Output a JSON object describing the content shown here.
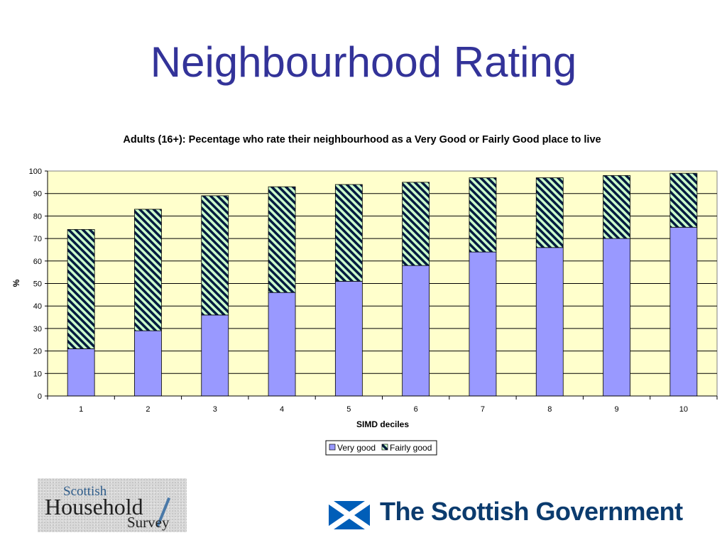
{
  "slide": {
    "title": "Neighbourhood Rating"
  },
  "chart_data": {
    "type": "bar",
    "stacked": true,
    "title": "Adults (16+): Pecentage who rate their neighbourhood as a Very Good or Fairly Good place to live",
    "xlabel": "SIMD deciles",
    "ylabel": "%",
    "ylim": [
      0,
      100
    ],
    "yticks": [
      "0",
      "10",
      "20",
      "30",
      "40",
      "50",
      "60",
      "70",
      "80",
      "90",
      "100"
    ],
    "categories": [
      "1",
      "2",
      "3",
      "4",
      "5",
      "6",
      "7",
      "8",
      "9",
      "10"
    ],
    "series": [
      {
        "name": "Very good",
        "values": [
          21,
          29,
          36,
          46,
          51,
          58,
          64,
          66,
          70,
          75
        ],
        "color": "#9999ff",
        "pattern": "solid"
      },
      {
        "name": "Fairly good",
        "values": [
          53,
          54,
          53,
          47,
          43,
          37,
          33,
          31,
          28,
          24
        ],
        "color": "#ccffcc",
        "pattern": "diagonal-hatch"
      }
    ],
    "background": "#ffffcc",
    "grid": true,
    "legend": "bottom-center"
  },
  "logos": {
    "shs": {
      "line1": "Scottish",
      "line2": "Household",
      "line3": "Survey"
    },
    "gov": {
      "text": "The Scottish Government",
      "icon": "saltire-flag-icon"
    }
  }
}
